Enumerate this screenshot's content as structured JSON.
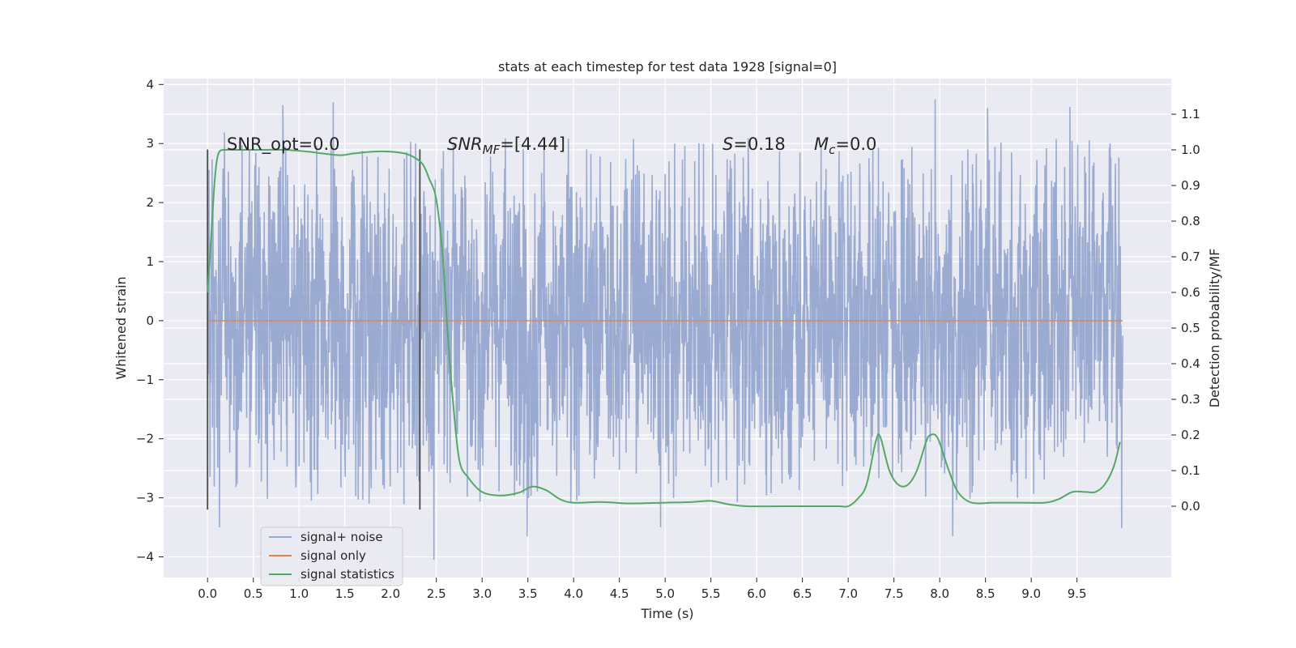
{
  "chart_data": {
    "type": "line",
    "title": "stats at each timestep for test data 1928 [signal=0]",
    "xlabel": "Time (s)",
    "ylabel": "Whitened strain",
    "ylabel_right": "Detection probability/MF",
    "xlim": [
      -0.48,
      10.53
    ],
    "ylim": [
      -4.35,
      4.1
    ],
    "ylim_right": [
      -0.2,
      1.2
    ],
    "x_ticks": [
      "0.0",
      "0.5",
      "1.0",
      "1.5",
      "2.0",
      "2.5",
      "3.0",
      "3.5",
      "4.0",
      "4.5",
      "5.0",
      "5.5",
      "6.0",
      "6.5",
      "7.0",
      "7.5",
      "8.0",
      "8.5",
      "9.0",
      "9.5"
    ],
    "y_ticks": [
      "4",
      "3",
      "2",
      "1",
      "0",
      "−1",
      "−2",
      "−3",
      "−4"
    ],
    "y_ticks_right": [
      "1.1",
      "1.0",
      "0.9",
      "0.8",
      "0.7",
      "0.6",
      "0.5",
      "0.4",
      "0.3",
      "0.2",
      "0.1",
      "0.0"
    ],
    "grid": true,
    "legend_position": "lower-left",
    "annotations": {
      "snr_opt": "SNR_opt=0.0",
      "snr_mf_base": "SNR",
      "snr_mf_sub": "MF",
      "snr_mf_value": "=[4.44]",
      "s_base": "S",
      "s_value": "=0.18",
      "mc_base": "M",
      "mc_sub": "c",
      "mc_value": "=0.0"
    },
    "window_markers_x": [
      0.0,
      2.32
    ],
    "window_markers_y": [
      -3.2,
      2.9
    ],
    "series": [
      {
        "name": "signal+ noise",
        "color": "#8c9fca",
        "noise_envelope": {
          "t_start": 0.0,
          "t_end": 10.0,
          "core_half_width": 1.1,
          "typical_peak": 2.5,
          "max_peak": 3.7
        },
        "notable_peaks": [
          {
            "x": 0.82,
            "y": 3.65
          },
          {
            "x": 1.37,
            "y": 3.7
          },
          {
            "x": 2.27,
            "y": 3.0
          },
          {
            "x": 7.95,
            "y": 3.75
          },
          {
            "x": 8.52,
            "y": 3.6
          },
          {
            "x": 9.42,
            "y": 3.62
          },
          {
            "x": 0.13,
            "y": -3.5
          },
          {
            "x": 3.49,
            "y": -3.65
          },
          {
            "x": 2.47,
            "y": -4.05
          },
          {
            "x": 8.14,
            "y": -3.65
          },
          {
            "x": 4.95,
            "y": -3.5
          }
        ]
      },
      {
        "name": "signal only",
        "color": "#dd8452",
        "x": [
          0.0,
          10.0
        ],
        "y": [
          0.0,
          0.0
        ]
      },
      {
        "name": "signal statistics",
        "color": "#55a868",
        "axis": "right",
        "x": [
          0.0,
          0.02,
          0.05,
          0.08,
          0.12,
          0.2,
          0.35,
          0.6,
          0.85,
          1.1,
          1.25,
          1.45,
          1.6,
          1.8,
          2.0,
          2.15,
          2.25,
          2.35,
          2.42,
          2.5,
          2.57,
          2.62,
          2.68,
          2.75,
          2.85,
          3.0,
          3.2,
          3.4,
          3.55,
          3.7,
          3.85,
          4.0,
          4.3,
          4.6,
          5.0,
          5.3,
          5.5,
          5.7,
          5.9,
          6.3,
          6.7,
          6.9,
          7.0,
          7.1,
          7.2,
          7.3,
          7.35,
          7.45,
          7.55,
          7.65,
          7.75,
          7.85,
          7.9,
          7.98,
          8.1,
          8.2,
          8.35,
          8.6,
          8.9,
          9.15,
          9.3,
          9.45,
          9.6,
          9.7,
          9.8,
          9.9,
          9.97
        ],
        "y": [
          0.6,
          0.68,
          0.8,
          0.92,
          0.99,
          1.0,
          1.0,
          1.0,
          1.0,
          0.995,
          0.99,
          0.985,
          0.99,
          0.995,
          0.995,
          0.99,
          0.98,
          0.96,
          0.92,
          0.86,
          0.7,
          0.5,
          0.3,
          0.13,
          0.08,
          0.04,
          0.03,
          0.038,
          0.055,
          0.045,
          0.02,
          0.01,
          0.012,
          0.008,
          0.01,
          0.012,
          0.015,
          0.005,
          0.0,
          0.0,
          0.0,
          0.0,
          0.0,
          0.02,
          0.06,
          0.18,
          0.195,
          0.1,
          0.06,
          0.06,
          0.1,
          0.18,
          0.2,
          0.19,
          0.1,
          0.04,
          0.01,
          0.01,
          0.01,
          0.01,
          0.02,
          0.04,
          0.04,
          0.04,
          0.06,
          0.11,
          0.18
        ]
      }
    ]
  }
}
